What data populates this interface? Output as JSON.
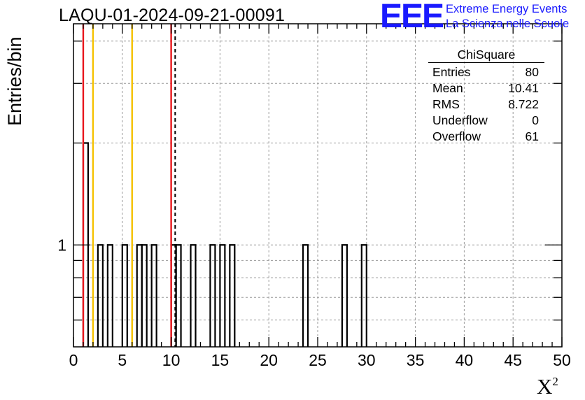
{
  "header": {
    "title": "LAQU-01-2024-09-21-00091",
    "logo": "EEE",
    "logo_line1": "Extreme Energy Events",
    "logo_line2": "La Scienza nelle Scuole"
  },
  "stats": {
    "title": "ChiSquare",
    "rows": [
      {
        "label": "Entries",
        "value": "80"
      },
      {
        "label": "Mean",
        "value": "10.41"
      },
      {
        "label": "RMS",
        "value": "8.722"
      },
      {
        "label": "Underflow",
        "value": "0"
      },
      {
        "label": "Overflow",
        "value": "61"
      }
    ]
  },
  "chart_data": {
    "type": "histogram",
    "title": "LAQU-01-2024-09-21-00091",
    "xlabel": "X",
    "xlabel_superscript": "2",
    "ylabel": "Entries/bin",
    "xlim": [
      0,
      50
    ],
    "ylog": true,
    "ylim": [
      0.5,
      4.5
    ],
    "bin_width": 0.5,
    "x_ticks": [
      0,
      5,
      10,
      15,
      20,
      25,
      30,
      35,
      40,
      45,
      50
    ],
    "y_tick_labels": [
      {
        "value": 1,
        "label": "1"
      }
    ],
    "grid": true,
    "bins": [
      {
        "x": 1.0,
        "count": 2
      },
      {
        "x": 2.5,
        "count": 1
      },
      {
        "x": 3.5,
        "count": 1
      },
      {
        "x": 5.0,
        "count": 1
      },
      {
        "x": 6.5,
        "count": 1
      },
      {
        "x": 7.0,
        "count": 1
      },
      {
        "x": 8.0,
        "count": 1
      },
      {
        "x": 10.0,
        "count": 1
      },
      {
        "x": 10.5,
        "count": 1
      },
      {
        "x": 12.0,
        "count": 1
      },
      {
        "x": 14.0,
        "count": 1
      },
      {
        "x": 15.0,
        "count": 1
      },
      {
        "x": 16.0,
        "count": 1
      },
      {
        "x": 23.5,
        "count": 1
      },
      {
        "x": 27.5,
        "count": 1
      },
      {
        "x": 29.5,
        "count": 1
      }
    ],
    "reference_lines": [
      {
        "x": 1.0,
        "color": "#e8161b",
        "style": "solid"
      },
      {
        "x": 2.0,
        "color": "#f5c200",
        "style": "solid"
      },
      {
        "x": 6.0,
        "color": "#f5c200",
        "style": "solid"
      },
      {
        "x": 10.0,
        "color": "#e8161b",
        "style": "solid"
      },
      {
        "x": 10.41,
        "color": "#000000",
        "style": "dashed"
      }
    ]
  }
}
